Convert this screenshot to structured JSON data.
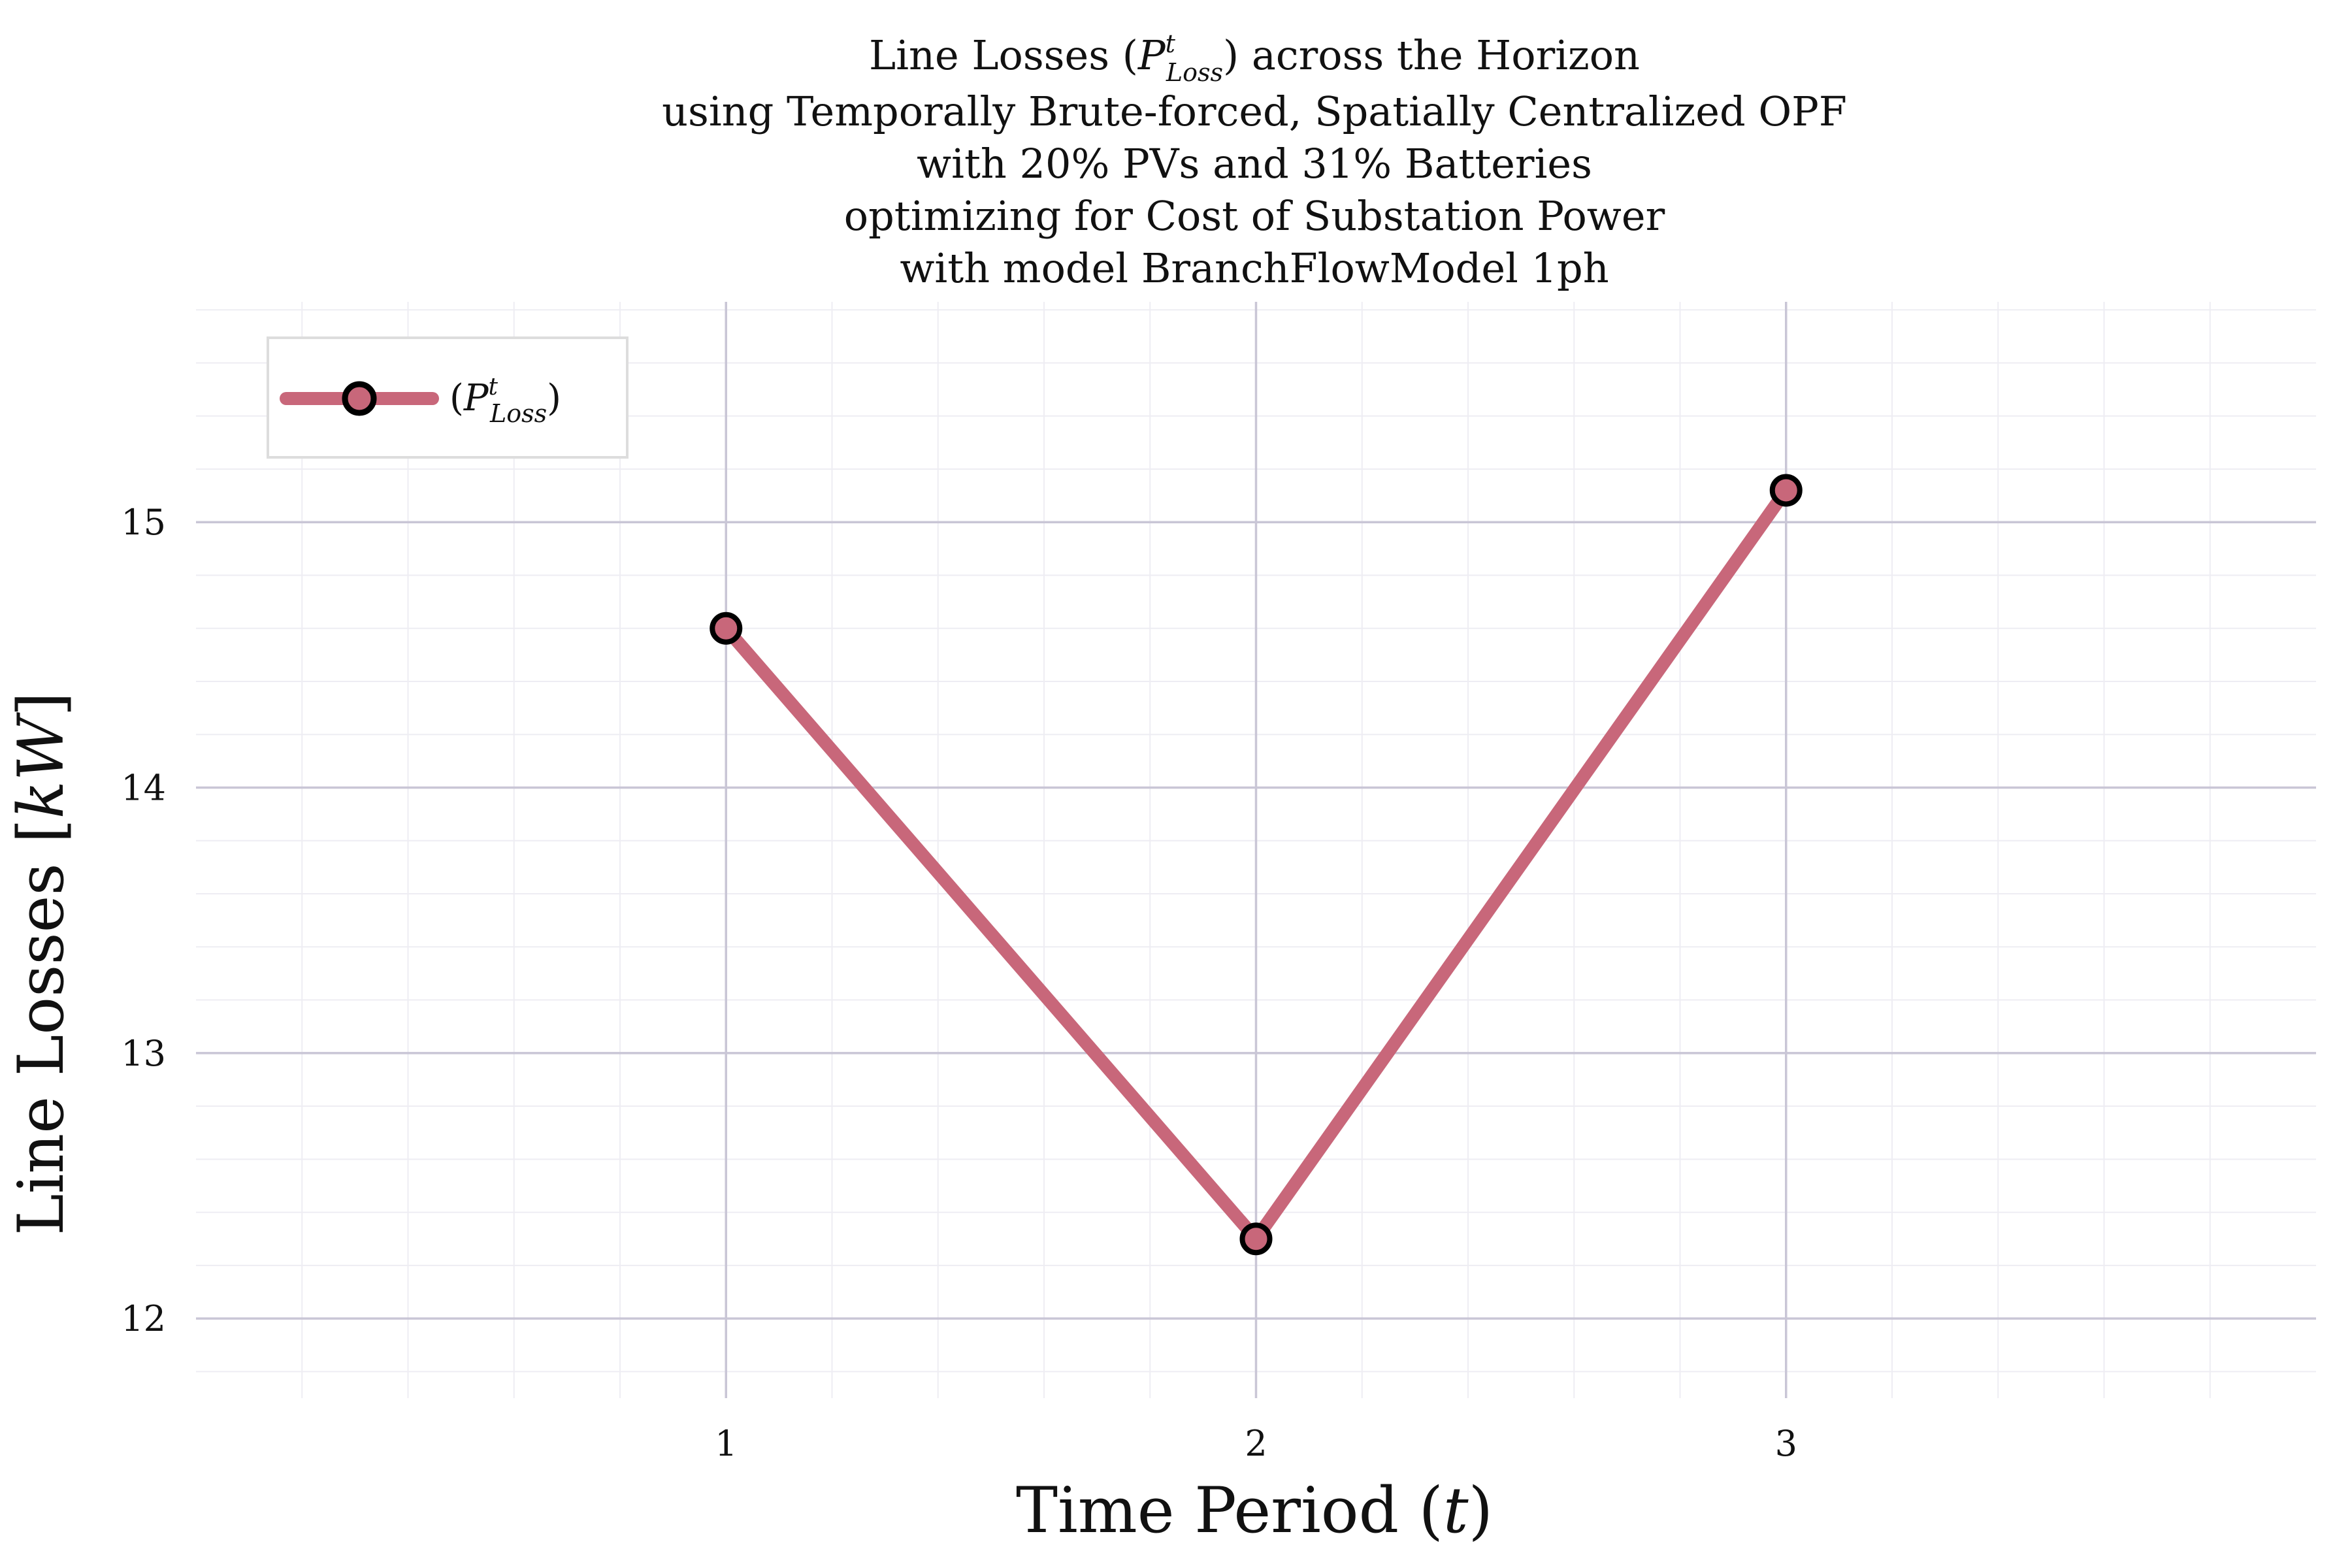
{
  "colors": {
    "series": "#c8677a",
    "marker_edge": "#000000",
    "major_grid": "#c9c6d6",
    "minor_grid": "#eeedf3",
    "legend_border": "#dddddd"
  },
  "chart_data": {
    "type": "line",
    "title": [
      "Line Losses (P^t_Loss) across the Horizon",
      "using Temporally Brute-forced, Spatially Centralized OPF",
      "with 20% PVs and 31% Batteries",
      "optimizing for Cost of Substation Power",
      "with model BranchFlowModel 1ph"
    ],
    "title_parts": {
      "pre": "Line Losses (",
      "sym": "P",
      "sup": "t",
      "sub": "Loss",
      "post": ") across the Horizon"
    },
    "xlabel": {
      "text": "Time Period (",
      "var": "t",
      "close": ")"
    },
    "ylabel": {
      "text": "Line Losses [",
      "unit": "kW",
      "close": "]"
    },
    "x": [
      1,
      2,
      3
    ],
    "series": [
      {
        "name": "(P^t_Loss)",
        "legend_open": "(",
        "legend_sym": "P",
        "legend_sup": "t",
        "legend_sub": "Loss",
        "legend_close": ")",
        "values": [
          14.6,
          12.3,
          15.12
        ]
      }
    ],
    "xlim": [
      0,
      4
    ],
    "ylim": [
      11.7,
      15.83
    ],
    "xticks": [
      "1",
      "2",
      "3"
    ],
    "yticks": [
      "12",
      "13",
      "14",
      "15"
    ],
    "grid": true,
    "legend_position": "top-left"
  }
}
